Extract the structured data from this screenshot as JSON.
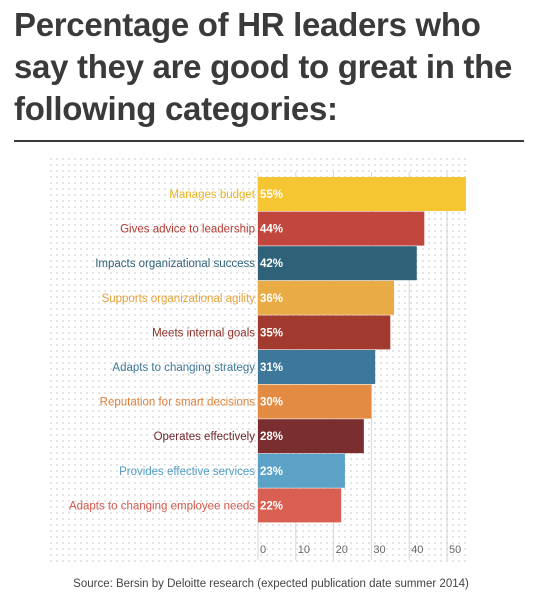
{
  "title": "Percentage of HR leaders who say they are good to great in the following categories:",
  "source": "Source: Bersin by Deloitte research (expected publication date summer 2014)",
  "chart_data": {
    "type": "bar",
    "orientation": "horizontal",
    "title": "Percentage of HR leaders who say they are good to great in the following categories:",
    "categories": [
      "Manages budget",
      "Gives advice to leadership",
      "Impacts organizational success",
      "Supports organizational agility",
      "Meets internal goals",
      "Adapts to changing strategy",
      "Reputation for smart decisions",
      "Operates effectively",
      "Provides effective services",
      "Adapts to changing employee needs"
    ],
    "values": [
      55,
      44,
      42,
      36,
      35,
      31,
      30,
      28,
      23,
      22
    ],
    "value_labels": [
      "55%",
      "44%",
      "42%",
      "36%",
      "35%",
      "31%",
      "30%",
      "28%",
      "23%",
      "22%"
    ],
    "colors": [
      "#f5c632",
      "#c0463e",
      "#2f6179",
      "#e8ab45",
      "#a33a2f",
      "#3d789a",
      "#e38b43",
      "#7a2e30",
      "#5ba2c6",
      "#d85f52"
    ],
    "label_colors": [
      "#e9b21f",
      "#b23b33",
      "#2f6179",
      "#e6a338",
      "#8e2f27",
      "#3d789a",
      "#e0813a",
      "#6f262a",
      "#4f9bc1",
      "#d4574a"
    ],
    "xticks": [
      "0",
      "10",
      "20",
      "30",
      "40",
      "50"
    ],
    "xlim": [
      0,
      55
    ],
    "grid": true
  }
}
